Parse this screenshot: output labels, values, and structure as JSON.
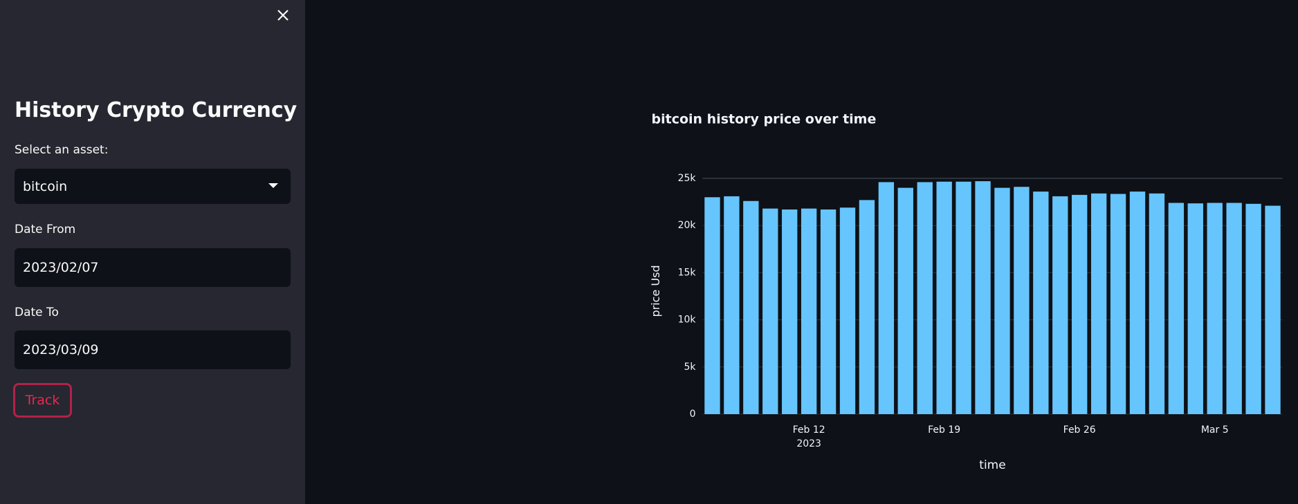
{
  "sidebar": {
    "title": "History Crypto Currency",
    "asset_label": "Select an asset:",
    "asset_value": "bitcoin",
    "date_from_label": "Date From",
    "date_from_value": "2023/02/07",
    "date_to_label": "Date To",
    "date_to_value": "2023/03/09",
    "button": "Track"
  },
  "chart_data": {
    "type": "bar",
    "title": "bitcoin history price over time",
    "xlabel": "time",
    "ylabel": "price Usd",
    "color": "#66c5fc",
    "grid": true,
    "x": [
      "2023-02-07",
      "2023-02-08",
      "2023-02-09",
      "2023-02-10",
      "2023-02-11",
      "2023-02-12",
      "2023-02-13",
      "2023-02-14",
      "2023-02-15",
      "2023-02-16",
      "2023-02-17",
      "2023-02-18",
      "2023-02-19",
      "2023-02-20",
      "2023-02-21",
      "2023-02-22",
      "2023-02-23",
      "2023-02-24",
      "2023-02-25",
      "2023-02-26",
      "2023-02-27",
      "2023-02-28",
      "2023-03-01",
      "2023-03-02",
      "2023-03-03",
      "2023-03-04",
      "2023-03-05",
      "2023-03-06",
      "2023-03-07",
      "2023-03-08"
    ],
    "values": [
      23000,
      23100,
      22600,
      21800,
      21700,
      21800,
      21700,
      21900,
      22700,
      24600,
      24000,
      24600,
      24650,
      24650,
      24700,
      24000,
      24100,
      23600,
      23100,
      23250,
      23400,
      23350,
      23600,
      23400,
      22400,
      22350,
      22400,
      22400,
      22300,
      22100
    ],
    "xlim": [
      "2023-02-06T12:00Z",
      "2023-03-08T12:00Z"
    ],
    "xticks": [
      {
        "value": "2023-02-12",
        "label": "Feb 12",
        "sublabel": "2023"
      },
      {
        "value": "2023-02-19",
        "label": "Feb 19"
      },
      {
        "value": "2023-02-26",
        "label": "Feb 26"
      },
      {
        "value": "2023-03-05",
        "label": "Mar 5"
      }
    ],
    "ylim": [
      0,
      25000
    ],
    "yticks": [
      0,
      {
        "value": 5000,
        "label": "5k"
      },
      {
        "value": 10000,
        "label": "10k"
      },
      {
        "value": 15000,
        "label": "15k"
      },
      {
        "value": 20000,
        "label": "20k"
      },
      {
        "value": 25000,
        "label": "25k"
      }
    ]
  }
}
